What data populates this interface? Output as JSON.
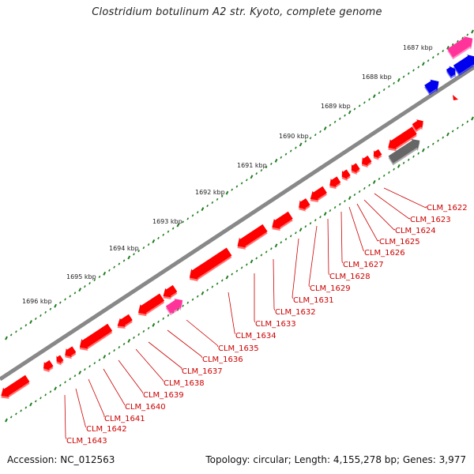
{
  "title": "Clostridium botulinum A2 str. Kyoto, complete genome",
  "footer": {
    "accession": "Accession: NC_012563",
    "summary": "Topology: circular; Length: 4,155,278 bp; Genes: 3,977"
  },
  "colors": {
    "cds": "#ff0000",
    "rna": "#ff3399",
    "other_forward": "#0000ee",
    "pseudo": "#666666",
    "backbone": "#888888",
    "ticks": "#1e7d1e",
    "label": "#cc0000"
  },
  "ruler_labels": [
    "1687 kbp",
    "1688 kbp",
    "1689 kbp",
    "1690 kbp",
    "1691 kbp",
    "1692 kbp",
    "1693 kbp",
    "1694 kbp",
    "1695 kbp",
    "1696 kbp"
  ],
  "gene_labels": [
    "CLM_1622",
    "CLM_1623",
    "CLM_1624",
    "CLM_1625",
    "CLM_1626",
    "CLM_1627",
    "CLM_1628",
    "CLM_1629",
    "CLM_1631",
    "CLM_1632",
    "CLM_1633",
    "CLM_1634",
    "CLM_1635",
    "CLM_1636",
    "CLM_1637",
    "CLM_1638",
    "CLM_1639",
    "CLM_1640",
    "CLM_1641",
    "CLM_1642",
    "CLM_1643"
  ]
}
